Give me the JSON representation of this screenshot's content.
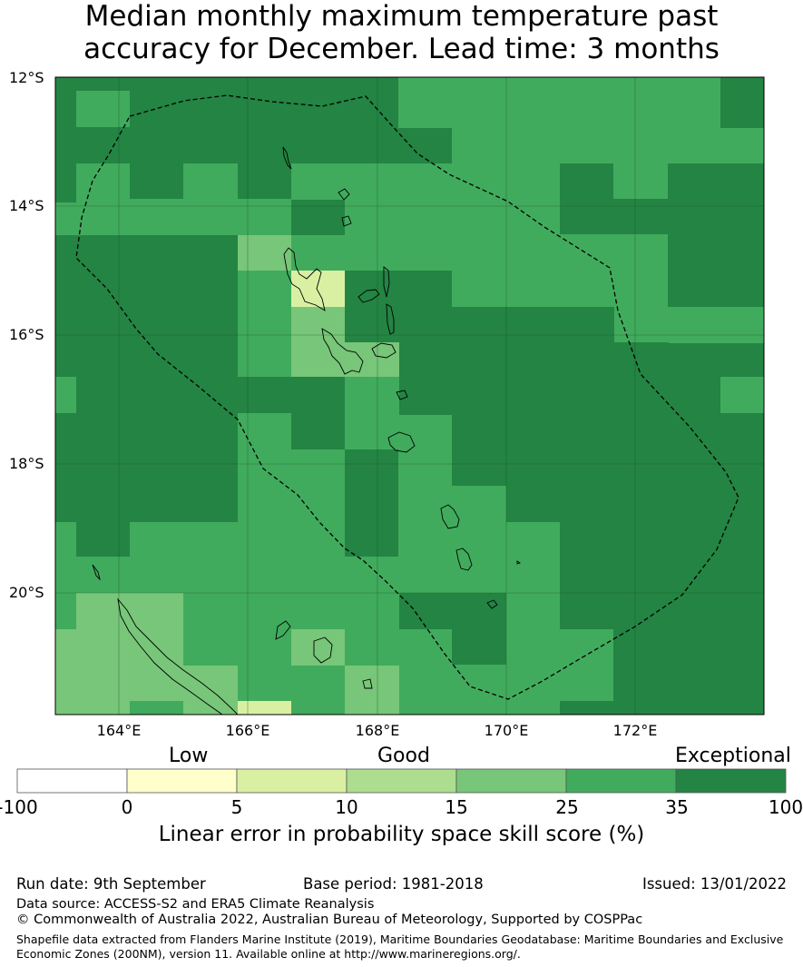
{
  "title_line1": "Median monthly maximum temperature past",
  "title_line2": "accuracy for December. Lead time: 3 months",
  "map": {
    "lat_labels": [
      "12°S",
      "14°S",
      "16°S",
      "18°S",
      "20°S"
    ],
    "lon_labels": [
      "164°E",
      "166°E",
      "168°E",
      "170°E",
      "172°E"
    ]
  },
  "colorbar": {
    "heading_low": "Low",
    "heading_good": "Good",
    "heading_exceptional": "Exceptional",
    "ticks": [
      "-100",
      "0",
      "5",
      "10",
      "15",
      "25",
      "35",
      "100"
    ],
    "colors": [
      "#ffffff",
      "#ffffcc",
      "#d9f0a3",
      "#addd8e",
      "#78c679",
      "#41ab5d",
      "#238443"
    ],
    "title": "Linear error in probability space skill score (%)"
  },
  "footer": {
    "run_date": "Run date: 9th September",
    "base_period": "Base period: 1981-2018",
    "issued": "Issued: 13/01/2022",
    "data_source": "Data source: ACCESS-S2 and ERA5 Climate Reanalysis",
    "copyright": "© Commonwealth of Australia 2022, Australian Bureau of Meteorology, Supported by COSPPac",
    "shapefile_line1": "Shapefile data extracted from Flanders Marine Institute (2019), Maritime Boundaries Geodatabase: Maritime Boundaries and Exclusive",
    "shapefile_line2": "Economic Zones (200NM), version 11. Available online at http://www.marineregions.org/."
  }
}
